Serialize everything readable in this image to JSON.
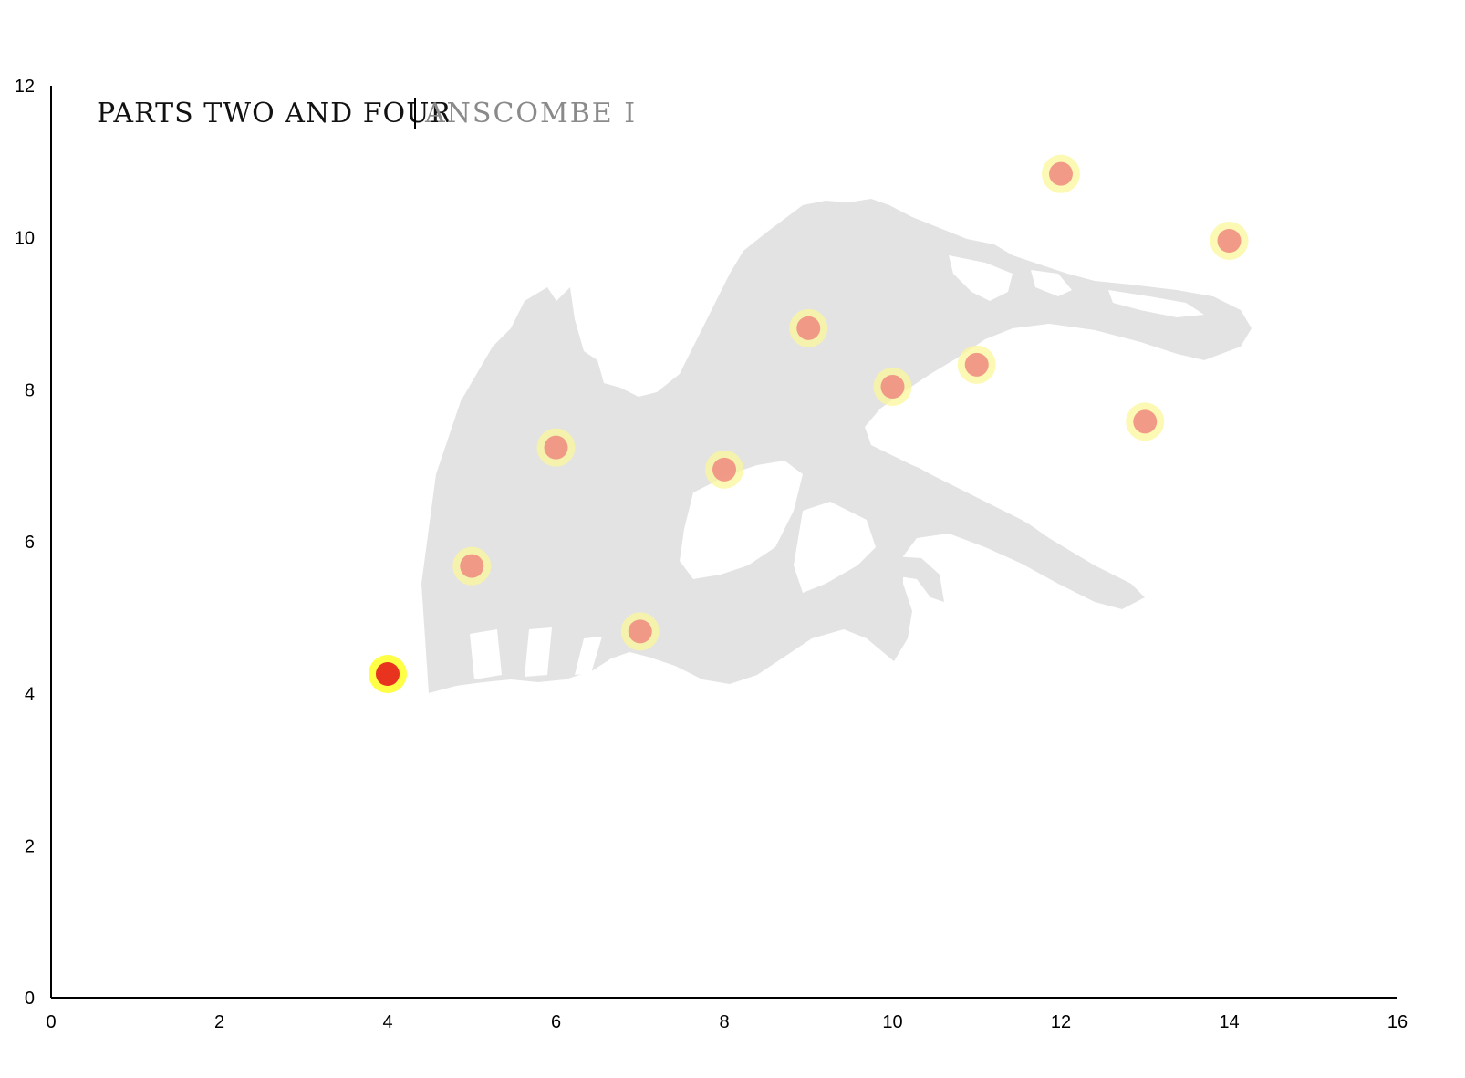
{
  "chart_data": {
    "type": "scatter",
    "title": "Parts Two and Four",
    "subtitle": "Anscombe I",
    "xlabel": "",
    "ylabel": "",
    "xlim": [
      0,
      16
    ],
    "ylim": [
      0,
      12
    ],
    "x_ticks": [
      "0",
      "2",
      "4",
      "6",
      "8",
      "10",
      "12",
      "14",
      "16"
    ],
    "y_ticks": [
      "0",
      "2",
      "4",
      "6",
      "8",
      "10",
      "12"
    ],
    "grid": false,
    "series": [
      {
        "points": [
          {
            "x": 10,
            "y": 8.04
          },
          {
            "x": 8,
            "y": 6.95
          },
          {
            "x": 13,
            "y": 7.58
          },
          {
            "x": 9,
            "y": 8.81
          },
          {
            "x": 11,
            "y": 8.33
          },
          {
            "x": 14,
            "y": 9.96
          },
          {
            "x": 6,
            "y": 7.24
          },
          {
            "x": 4,
            "y": 4.26
          },
          {
            "x": 12,
            "y": 10.84
          },
          {
            "x": 7,
            "y": 4.82
          },
          {
            "x": 5,
            "y": 5.68
          }
        ]
      }
    ],
    "highlighted_point": {
      "x": 4,
      "y": 4.26
    },
    "colors": {
      "point_fill": "#f08a80",
      "point_halo": "#fbf79b",
      "highlight_fill": "#e8331f",
      "highlight_halo": "#ffff3c",
      "background_figure": "#e3e3e3"
    },
    "background_figure": "dinosaur-skeleton-silhouette"
  }
}
